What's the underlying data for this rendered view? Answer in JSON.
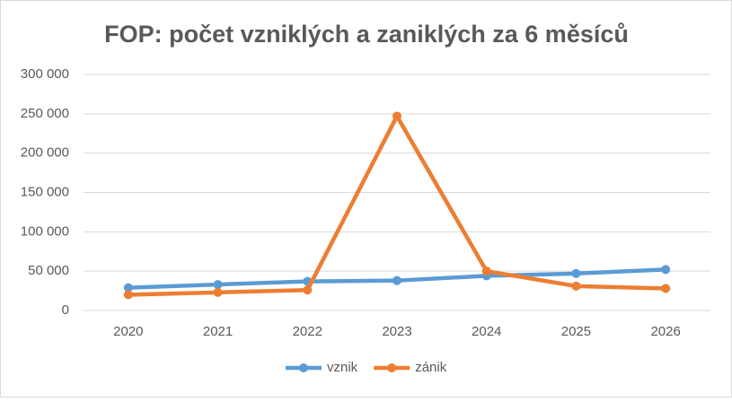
{
  "chart_data": {
    "type": "line",
    "title": "FOP: počet vzniklých a zaniklých za 6 měsíců",
    "categories": [
      "2020",
      "2021",
      "2022",
      "2023",
      "2024",
      "2025",
      "2026"
    ],
    "series": [
      {
        "name": "vznik",
        "color": "#5b9bd5",
        "values": [
          29000,
          33000,
          37000,
          38000,
          44000,
          47000,
          52000
        ]
      },
      {
        "name": "zánik",
        "color": "#ed7d31",
        "values": [
          20000,
          23000,
          26000,
          247000,
          50000,
          31000,
          28000
        ]
      }
    ],
    "ylim": [
      0,
      300000
    ],
    "yticks": [
      {
        "value": 0,
        "label": "0"
      },
      {
        "value": 50000,
        "label": "50 000"
      },
      {
        "value": 100000,
        "label": "100 000"
      },
      {
        "value": 150000,
        "label": "150 000"
      },
      {
        "value": 200000,
        "label": "200 000"
      },
      {
        "value": 250000,
        "label": "250 000"
      },
      {
        "value": 300000,
        "label": "300 000"
      }
    ],
    "grid": true,
    "legend": "bottom"
  }
}
